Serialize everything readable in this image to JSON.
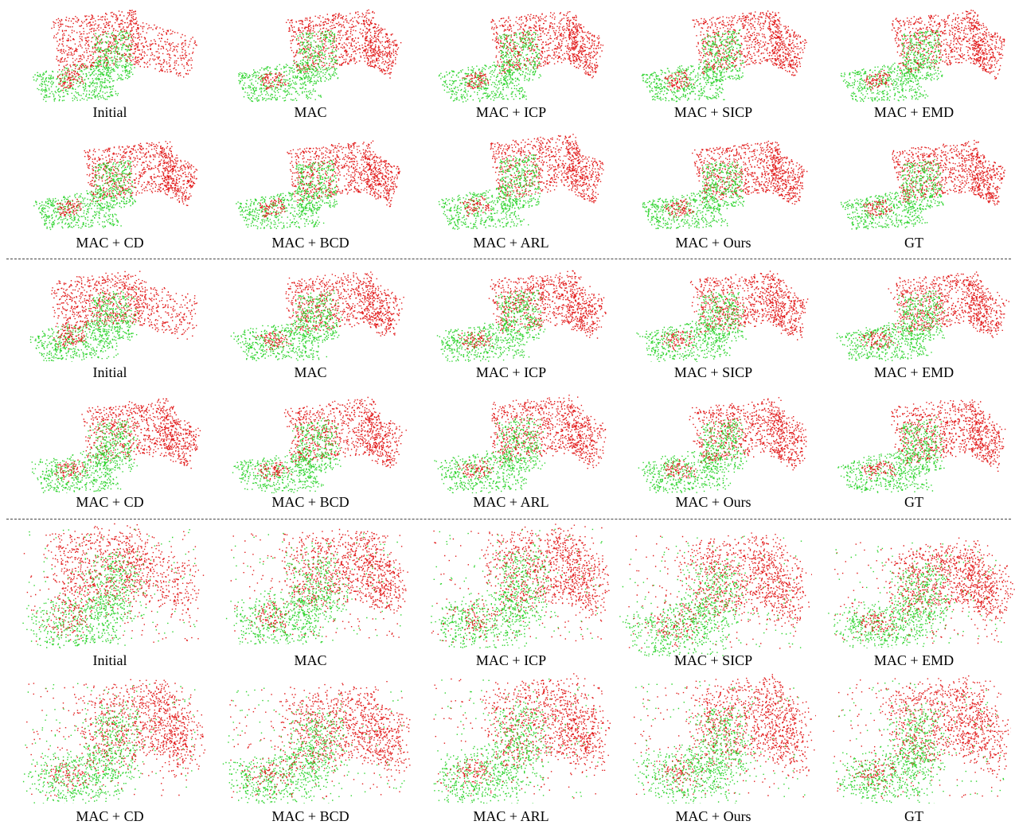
{
  "colors": {
    "source_points": "#e21b1b",
    "target_points": "#2fd42f",
    "separator": "#444444"
  },
  "groups": [
    {
      "rows": [
        [
          "Initial",
          "MAC",
          "MAC + ICP",
          "MAC + SICP",
          "MAC + EMD"
        ],
        [
          "MAC + CD",
          "MAC + BCD",
          "MAC + ARL",
          "MAC + Ours",
          "GT"
        ]
      ]
    },
    {
      "rows": [
        [
          "Initial",
          "MAC",
          "MAC + ICP",
          "MAC + SICP",
          "MAC + EMD"
        ],
        [
          "MAC + CD",
          "MAC + BCD",
          "MAC + ARL",
          "MAC + Ours",
          "GT"
        ]
      ]
    },
    {
      "rows": [
        [
          "Initial",
          "MAC",
          "MAC + ICP",
          "MAC + SICP",
          "MAC + EMD"
        ],
        [
          "MAC + CD",
          "MAC + BCD",
          "MAC + ARL",
          "MAC + Ours",
          "GT"
        ]
      ]
    }
  ]
}
